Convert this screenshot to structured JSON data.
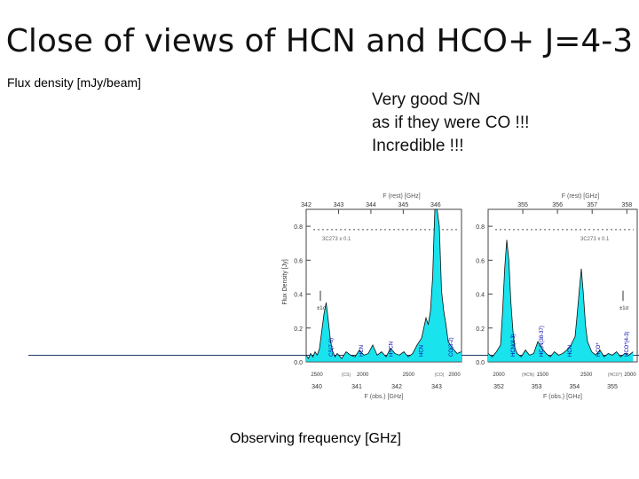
{
  "slide": {
    "title": "Close of views of HCN and HCO+ J=4-3",
    "ylabel_note": "Flux density [mJy/beam]",
    "note_lines": [
      "Very good S/N",
      "as if they were CO !!!",
      "Incredible !!!"
    ],
    "xlabel_note": "Observing frequency [GHz]"
  },
  "chart_data": [
    {
      "type": "line",
      "panel": "left",
      "top_axis_label": "F (rest) [GHz]",
      "top_ticks": [
        "342",
        "343",
        "344",
        "345",
        "346"
      ],
      "bottom_axis_label": "F (obs.) [GHz]",
      "bottom_ticks": [
        "340",
        "341",
        "342",
        "343"
      ],
      "velocity_ticks": [
        "2500",
        "2000",
        "2500",
        "2000"
      ],
      "velocity_tags": [
        "(CS)",
        "(CO)"
      ],
      "ylabel": "Flux Density [Jy]",
      "y_ticks": [
        "0.0",
        "0.2",
        "0.4",
        "0.6",
        "0.8"
      ],
      "ylim": [
        0,
        0.9
      ],
      "xlim": [
        340.0,
        343.5
      ],
      "error_label": "±1σ",
      "continuum_label": "3C273 x 0.1",
      "lines": [
        "CS(7-6)",
        "HCN",
        "H¹³CN",
        "HCN",
        "CO(3-2)"
      ],
      "series": [
        {
          "values": [
            [
              340.0,
              0.04
            ],
            [
              340.05,
              0.02
            ],
            [
              340.1,
              0.05
            ],
            [
              340.15,
              0.03
            ],
            [
              340.2,
              0.06
            ],
            [
              340.25,
              0.04
            ],
            [
              340.3,
              0.08
            ],
            [
              340.35,
              0.18
            ],
            [
              340.4,
              0.28
            ],
            [
              340.45,
              0.35
            ],
            [
              340.5,
              0.24
            ],
            [
              340.55,
              0.12
            ],
            [
              340.6,
              0.06
            ],
            [
              340.65,
              0.03
            ],
            [
              340.7,
              0.05
            ],
            [
              340.8,
              0.02
            ],
            [
              340.9,
              0.06
            ],
            [
              341.0,
              0.04
            ],
            [
              341.1,
              0.03
            ],
            [
              341.2,
              0.07
            ],
            [
              341.3,
              0.04
            ],
            [
              341.4,
              0.05
            ],
            [
              341.5,
              0.1
            ],
            [
              341.6,
              0.04
            ],
            [
              341.7,
              0.06
            ],
            [
              341.8,
              0.03
            ],
            [
              341.9,
              0.08
            ],
            [
              342.0,
              0.05
            ],
            [
              342.1,
              0.04
            ],
            [
              342.2,
              0.06
            ],
            [
              342.3,
              0.03
            ],
            [
              342.4,
              0.05
            ],
            [
              342.5,
              0.1
            ],
            [
              342.6,
              0.14
            ],
            [
              342.7,
              0.26
            ],
            [
              342.75,
              0.22
            ],
            [
              342.8,
              0.3
            ],
            [
              342.85,
              0.5
            ],
            [
              342.88,
              0.75
            ],
            [
              342.9,
              0.9
            ],
            [
              342.95,
              0.9
            ],
            [
              343.0,
              0.8
            ],
            [
              343.05,
              0.42
            ],
            [
              343.1,
              0.3
            ],
            [
              343.15,
              0.22
            ],
            [
              343.2,
              0.12
            ],
            [
              343.3,
              0.08
            ],
            [
              343.4,
              0.05
            ],
            [
              343.5,
              0.06
            ]
          ]
        }
      ]
    },
    {
      "type": "line",
      "panel": "right",
      "top_axis_label": "F (rest) [GHz]",
      "top_ticks": [
        "355",
        "356",
        "357",
        "358"
      ],
      "bottom_axis_label": "F (obs.) [GHz]",
      "bottom_ticks": [
        "352",
        "353",
        "354",
        "355"
      ],
      "velocity_ticks": [
        "2000",
        "1500",
        "2500",
        "2000"
      ],
      "velocity_tags": [
        "(HCN)",
        "(HCO*)"
      ],
      "y_ticks": [
        "0.0",
        "0.2",
        "0.4",
        "0.6",
        "0.8"
      ],
      "ylim": [
        0,
        0.9
      ],
      "xlim": [
        351.7,
        355.3
      ],
      "error_label": "±1σ",
      "continuum_label": "3C273 x 0.1",
      "lines": [
        "HCN(4-3)",
        "HC₃N(38-37)",
        "HCN",
        "HCO*",
        "HCO*(4-3)"
      ],
      "series": [
        {
          "values": [
            [
              351.7,
              0.05
            ],
            [
              351.8,
              0.03
            ],
            [
              351.9,
              0.06
            ],
            [
              352.0,
              0.1
            ],
            [
              352.05,
              0.3
            ],
            [
              352.1,
              0.55
            ],
            [
              352.15,
              0.72
            ],
            [
              352.2,
              0.6
            ],
            [
              352.25,
              0.35
            ],
            [
              352.3,
              0.18
            ],
            [
              352.35,
              0.08
            ],
            [
              352.4,
              0.05
            ],
            [
              352.5,
              0.03
            ],
            [
              352.6,
              0.07
            ],
            [
              352.7,
              0.04
            ],
            [
              352.8,
              0.05
            ],
            [
              352.9,
              0.12
            ],
            [
              353.0,
              0.08
            ],
            [
              353.1,
              0.05
            ],
            [
              353.2,
              0.03
            ],
            [
              353.3,
              0.06
            ],
            [
              353.4,
              0.04
            ],
            [
              353.5,
              0.05
            ],
            [
              353.6,
              0.07
            ],
            [
              353.7,
              0.1
            ],
            [
              353.8,
              0.15
            ],
            [
              353.85,
              0.28
            ],
            [
              353.9,
              0.42
            ],
            [
              353.95,
              0.55
            ],
            [
              354.0,
              0.4
            ],
            [
              354.05,
              0.22
            ],
            [
              354.1,
              0.12
            ],
            [
              354.2,
              0.06
            ],
            [
              354.3,
              0.04
            ],
            [
              354.4,
              0.07
            ],
            [
              354.5,
              0.03
            ],
            [
              354.6,
              0.05
            ],
            [
              354.7,
              0.04
            ],
            [
              354.8,
              0.06
            ],
            [
              354.9,
              0.03
            ],
            [
              355.0,
              0.05
            ],
            [
              355.1,
              0.04
            ],
            [
              355.2,
              0.06
            ]
          ]
        }
      ]
    }
  ],
  "colors": {
    "fill": "#19e3ec",
    "axis": "#444444",
    "dotted": "#555555",
    "rule": "#1f3a68"
  }
}
